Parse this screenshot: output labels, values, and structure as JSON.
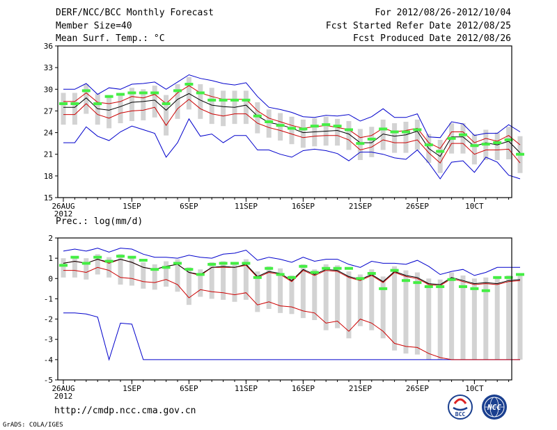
{
  "header": {
    "title": "DERF/NCC/BCC Monthly Forecast",
    "member": "Member Size=40",
    "variable": "Mean Surf. Temp.: °C",
    "period": "For 2012/08/26-2012/10/04",
    "started": "Fcst Started Refer Date 2012/08/25",
    "produced": "Fcst Produced Date 2012/08/26"
  },
  "footer": {
    "url": "http://cmdp.ncc.cma.gov.cn",
    "grads": "GrADS: COLA/IGES",
    "logo_bcc": "BCC",
    "logo_ncc": "NCC"
  },
  "colors": {
    "black": "#000000",
    "blue": "#0000cc",
    "red": "#cc0000",
    "green": "#44ee44",
    "box": "#d3d3d3"
  },
  "chart_data": [
    {
      "type": "line",
      "title": "Mean Surf. Temp.: °C",
      "ylim": [
        15,
        36
      ],
      "yticks": [
        "15",
        "18",
        "21",
        "24",
        "27",
        "30",
        "33",
        "36"
      ],
      "xticks": [
        {
          "day": 0,
          "label": "26AUG",
          "sub": "2012"
        },
        {
          "day": 6,
          "label": "1SEP"
        },
        {
          "day": 11,
          "label": "6SEP"
        },
        {
          "day": 16,
          "label": "11SEP"
        },
        {
          "day": 21,
          "label": "16SEP"
        },
        {
          "day": 26,
          "label": "21SEP"
        },
        {
          "day": 31,
          "label": "26SEP"
        },
        {
          "day": 36,
          "label": "1OCT",
          "display": "10CT"
        }
      ],
      "series": [
        {
          "name": "max",
          "color": "blue",
          "values": [
            30,
            30,
            30.8,
            29.3,
            30.2,
            30,
            30.7,
            30.8,
            31,
            30,
            31,
            32,
            31.5,
            31.2,
            30.8,
            30.6,
            30.9,
            29,
            27.5,
            27.2,
            26.8,
            26.2,
            26.1,
            26.4,
            26.3,
            26.5,
            25.6,
            26.2,
            27.3,
            26.1,
            26.1,
            26.6,
            23.4,
            23.3,
            25.5,
            25.2,
            23.6,
            23.9,
            23.9,
            25.1,
            24.1
          ]
        },
        {
          "name": "upper",
          "color": "red",
          "values": [
            28.3,
            28.3,
            29.5,
            28.2,
            28,
            28.3,
            29,
            28.8,
            29.3,
            28,
            29.5,
            30.5,
            29.5,
            29,
            28.6,
            28.6,
            28.6,
            27,
            26,
            25.5,
            25,
            24.6,
            24.8,
            25,
            24.7,
            24.4,
            23.3,
            23.6,
            24.6,
            24.1,
            24.3,
            24.6,
            22.6,
            21.8,
            24.1,
            24.1,
            22.6,
            23.2,
            22.8,
            23.6,
            22.3
          ]
        },
        {
          "name": "mean",
          "color": "black",
          "values": [
            27.5,
            27.5,
            28.8,
            27.3,
            27.1,
            27.6,
            28.2,
            28.3,
            28.5,
            27.1,
            28.6,
            29.4,
            28.5,
            27.8,
            27.6,
            27.5,
            27.8,
            26.3,
            25.4,
            25.1,
            24.6,
            24,
            24.1,
            24.2,
            24.3,
            23.8,
            22.6,
            22.6,
            23.8,
            23.5,
            23.7,
            24.2,
            21.8,
            20.7,
            23.4,
            23.4,
            22.1,
            22.6,
            22.3,
            22.8,
            21.2
          ]
        },
        {
          "name": "lower",
          "color": "red",
          "values": [
            26.5,
            26.5,
            28,
            26.5,
            26,
            26.7,
            27,
            27.1,
            27.5,
            25,
            27.3,
            28.6,
            27.3,
            26.6,
            26.3,
            26.6,
            26.6,
            25.3,
            24.7,
            24.3,
            23.8,
            23.3,
            23.5,
            23.6,
            23.6,
            23,
            21.6,
            22,
            23,
            22.6,
            22.6,
            23,
            21.2,
            19.8,
            22.5,
            22.5,
            21,
            21.6,
            21.6,
            21.7,
            19.8
          ]
        },
        {
          "name": "min",
          "color": "blue",
          "values": [
            22.6,
            22.6,
            24.8,
            23.5,
            22.9,
            24.1,
            24.9,
            24.4,
            23.9,
            20.6,
            22.6,
            25.9,
            23.5,
            23.8,
            22.6,
            23.6,
            23.6,
            21.6,
            21.6,
            21,
            20.6,
            21.5,
            21.7,
            21.5,
            21.1,
            20.1,
            21.3,
            21.3,
            21,
            20.5,
            20.3,
            21.6,
            19.8,
            17.6,
            19.9,
            20.1,
            18.5,
            20.6,
            19.9,
            18.1,
            17.6
          ]
        },
        {
          "name": "observed",
          "color": "green",
          "marker": "dash",
          "values": [
            28,
            28,
            29.8,
            28,
            29,
            29.3,
            29.5,
            29.5,
            29.5,
            28,
            29.8,
            30.7,
            29.5,
            28.5,
            28.5,
            28.5,
            28.5,
            26.3,
            25.5,
            25,
            24.6,
            24.5,
            24.9,
            25.1,
            24.9,
            24.4,
            22.5,
            23.1,
            24.5,
            24.1,
            24.1,
            24.4,
            22.3,
            21.4,
            23.2,
            23.7,
            22.2,
            22.4,
            22.6,
            23,
            21
          ]
        }
      ]
    },
    {
      "type": "line",
      "title": "Prec.: log(mm/d)",
      "ylim": [
        -5,
        2
      ],
      "yticks": [
        "-5",
        "-4",
        "-3",
        "-2",
        "-1",
        "0",
        "1",
        "2"
      ],
      "xticks": [
        {
          "day": 0,
          "label": "26AUG",
          "sub": "2012"
        },
        {
          "day": 6,
          "label": "1SEP"
        },
        {
          "day": 11,
          "label": "6SEP"
        },
        {
          "day": 16,
          "label": "11SEP"
        },
        {
          "day": 21,
          "label": "16SEP"
        },
        {
          "day": 26,
          "label": "21SEP"
        },
        {
          "day": 31,
          "label": "26SEP"
        },
        {
          "day": 36,
          "label": "1OCT",
          "display": "10CT"
        }
      ],
      "series": [
        {
          "name": "max",
          "color": "blue",
          "values": [
            1.35,
            1.45,
            1.35,
            1.5,
            1.3,
            1.5,
            1.45,
            1.2,
            1.05,
            1.05,
            1.0,
            1.15,
            1.05,
            1.0,
            1.2,
            1.25,
            1.4,
            0.9,
            1.05,
            0.95,
            0.8,
            1.05,
            0.85,
            0.95,
            0.95,
            0.7,
            0.55,
            0.85,
            0.75,
            0.75,
            0.7,
            0.9,
            0.6,
            0.2,
            0.35,
            0.45,
            0.15,
            0.3,
            0.55,
            0.55,
            0.55
          ]
        },
        {
          "name": "mean",
          "color": "black",
          "values": [
            0.75,
            0.85,
            0.75,
            0.95,
            0.8,
            0.95,
            0.8,
            0.55,
            0.45,
            0.6,
            0.7,
            0.3,
            0.2,
            0.55,
            0.6,
            0.55,
            0.7,
            0.1,
            0.35,
            0.25,
            -0.1,
            0.45,
            0.2,
            0.45,
            0.4,
            0.1,
            -0.05,
            0.2,
            -0.15,
            0.35,
            0.15,
            0.05,
            -0.25,
            -0.3,
            0.05,
            -0.1,
            -0.25,
            -0.2,
            -0.25,
            -0.1,
            -0.05
          ]
        },
        {
          "name": "upper",
          "color": "red",
          "values": [
            0.75,
            0.85,
            0.75,
            0.95,
            0.75,
            0.95,
            0.8,
            0.55,
            0.45,
            0.6,
            0.7,
            0.3,
            0.15,
            0.55,
            0.55,
            0.55,
            0.65,
            0.05,
            0.3,
            0.2,
            -0.15,
            0.4,
            0.15,
            0.4,
            0.35,
            0.05,
            -0.1,
            0.15,
            -0.2,
            0.3,
            0.1,
            0.0,
            -0.3,
            -0.35,
            0.0,
            -0.15,
            -0.3,
            -0.25,
            -0.3,
            -0.15,
            -0.1
          ]
        },
        {
          "name": "lower",
          "color": "red",
          "values": [
            0.4,
            0.4,
            0.3,
            0.55,
            0.4,
            0.05,
            0.0,
            -0.15,
            -0.2,
            -0.05,
            -0.3,
            -0.95,
            -0.55,
            -0.65,
            -0.7,
            -0.8,
            -0.7,
            -1.3,
            -1.15,
            -1.35,
            -1.4,
            -1.6,
            -1.7,
            -2.2,
            -2.1,
            -2.6,
            -2.0,
            -2.2,
            -2.6,
            -3.2,
            -3.35,
            -3.4,
            -3.7,
            -3.9,
            -4.0,
            -4.0,
            -4.0,
            -4.0,
            -4.0,
            -4.0,
            -4.0
          ]
        },
        {
          "name": "min",
          "color": "blue",
          "values": [
            -1.7,
            -1.7,
            -1.75,
            -1.9,
            -4.0,
            -2.2,
            -2.25,
            -4.0,
            -4.0,
            -4.0,
            -4.0,
            -4.0,
            -4.0,
            -4.0,
            -4.0,
            -4.0,
            -4.0,
            -4.0,
            -4.0,
            -4.0,
            -4.0,
            -4.0,
            -4.0,
            -4.0,
            -4.0,
            -4.0,
            -4.0,
            -4.0,
            -4.0,
            -4.0,
            -4.0,
            -4.0,
            -4.0,
            -4.0,
            -4.0,
            -4.0,
            -4.0,
            -4.0,
            -4.0,
            -4.0,
            -4.0
          ]
        },
        {
          "name": "observed",
          "color": "green",
          "marker": "dash",
          "values": [
            0.65,
            1.05,
            0.75,
            1.05,
            0.85,
            1.1,
            1.05,
            0.9,
            0.45,
            0.55,
            0.75,
            0.45,
            0.2,
            0.7,
            0.75,
            0.75,
            0.75,
            0.05,
            0.5,
            0.2,
            0.05,
            0.6,
            0.3,
            0.5,
            0.5,
            0.5,
            0.0,
            0.25,
            -0.5,
            0.4,
            -0.1,
            -0.2,
            -0.4,
            -0.4,
            -0.05,
            -0.4,
            -0.5,
            -0.6,
            0.05,
            0.05,
            0.2
          ]
        }
      ]
    }
  ]
}
